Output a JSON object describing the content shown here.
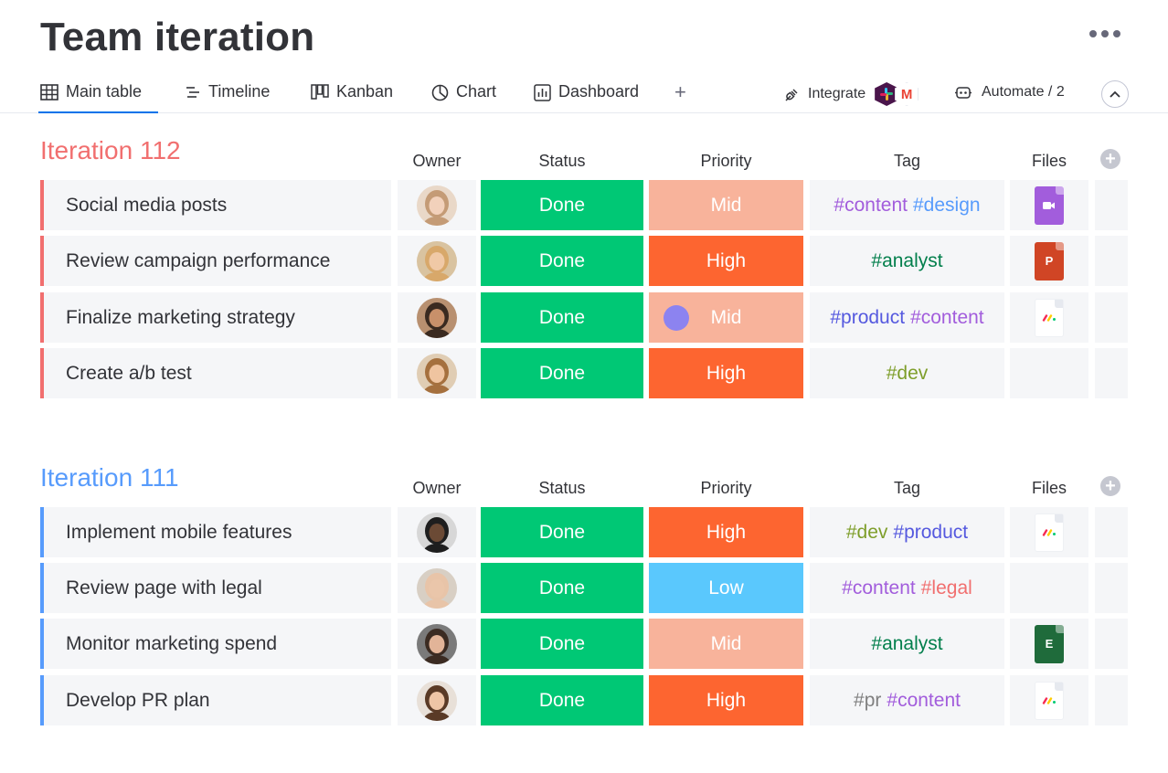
{
  "page": {
    "title": "Team iteration"
  },
  "tabs": [
    {
      "label": "Main table",
      "icon": "table-icon",
      "active": true
    },
    {
      "label": "Timeline",
      "icon": "timeline-icon"
    },
    {
      "label": "Kanban",
      "icon": "kanban-icon"
    },
    {
      "label": "Chart",
      "icon": "chart-icon"
    },
    {
      "label": "Dashboard",
      "icon": "dashboard-icon"
    }
  ],
  "toolbar": {
    "add_view": "+",
    "integrate_label": "Integrate",
    "automate_label": "Automate / 2"
  },
  "columns": {
    "owner": "Owner",
    "status": "Status",
    "priority": "Priority",
    "tag": "Tag",
    "files": "Files"
  },
  "colors": {
    "done": "#00c875",
    "high": "#fd6530",
    "mid": "#f8b39b",
    "low": "#5ac8fd",
    "group_112": "#f16f6f",
    "group_111": "#579bfc"
  },
  "groups": [
    {
      "title": "Iteration 112",
      "color": "#f16f6f",
      "rows": [
        {
          "name": "Social media posts",
          "owner": "woman-light-hair",
          "status": "Done",
          "priority": "Mid",
          "tags": [
            {
              "text": "#content",
              "color": "#a25ddc"
            },
            {
              "text": "#design",
              "color": "#579bfc"
            }
          ],
          "file": {
            "type": "video-file-icon",
            "color": "#a25ddc",
            "label": ""
          }
        },
        {
          "name": "Review campaign performance",
          "owner": "woman-blonde",
          "status": "Done",
          "priority": "High",
          "tags": [
            {
              "text": "#analyst",
              "color": "#037f4c"
            }
          ],
          "file": {
            "type": "powerpoint-file-icon",
            "color": "#d04525",
            "label": "P"
          }
        },
        {
          "name": "Finalize marketing strategy",
          "owner": "man-beard",
          "status": "Done",
          "priority": "Mid",
          "tags": [
            {
              "text": "#product",
              "color": "#5559df"
            },
            {
              "text": "#content",
              "color": "#a25ddc"
            }
          ],
          "file": {
            "type": "monday-file-icon",
            "color": "#ffffff",
            "label": ""
          }
        },
        {
          "name": "Create a/b test",
          "owner": "woman-curly",
          "status": "Done",
          "priority": "High",
          "tags": [
            {
              "text": "#dev",
              "color": "#7e9e2a"
            }
          ],
          "file": null
        }
      ]
    },
    {
      "title": "Iteration 111",
      "color": "#579bfc",
      "rows": [
        {
          "name": "Implement mobile features",
          "owner": "man-dark",
          "status": "Done",
          "priority": "High",
          "tags": [
            {
              "text": "#dev",
              "color": "#7e9e2a"
            },
            {
              "text": "#product",
              "color": "#5559df"
            }
          ],
          "file": {
            "type": "monday-file-icon",
            "color": "#ffffff",
            "label": ""
          }
        },
        {
          "name": "Review page with legal",
          "owner": "man-bald",
          "status": "Done",
          "priority": "Low",
          "tags": [
            {
              "text": "#content",
              "color": "#a25ddc"
            },
            {
              "text": "#legal",
              "color": "#f16f6f"
            }
          ],
          "file": null
        },
        {
          "name": "Monitor marketing spend",
          "owner": "woman-dark-hair",
          "status": "Done",
          "priority": "Mid",
          "tags": [
            {
              "text": "#analyst",
              "color": "#037f4c"
            }
          ],
          "file": {
            "type": "excel-file-icon",
            "color": "#1f6b3b",
            "label": "E"
          }
        },
        {
          "name": "Develop PR plan",
          "owner": "woman-long-hair",
          "status": "Done",
          "priority": "High",
          "tags": [
            {
              "text": "#pr",
              "color": "#808080"
            },
            {
              "text": "#content",
              "color": "#a25ddc"
            }
          ],
          "file": {
            "type": "monday-file-icon",
            "color": "#ffffff",
            "label": ""
          }
        }
      ]
    }
  ]
}
